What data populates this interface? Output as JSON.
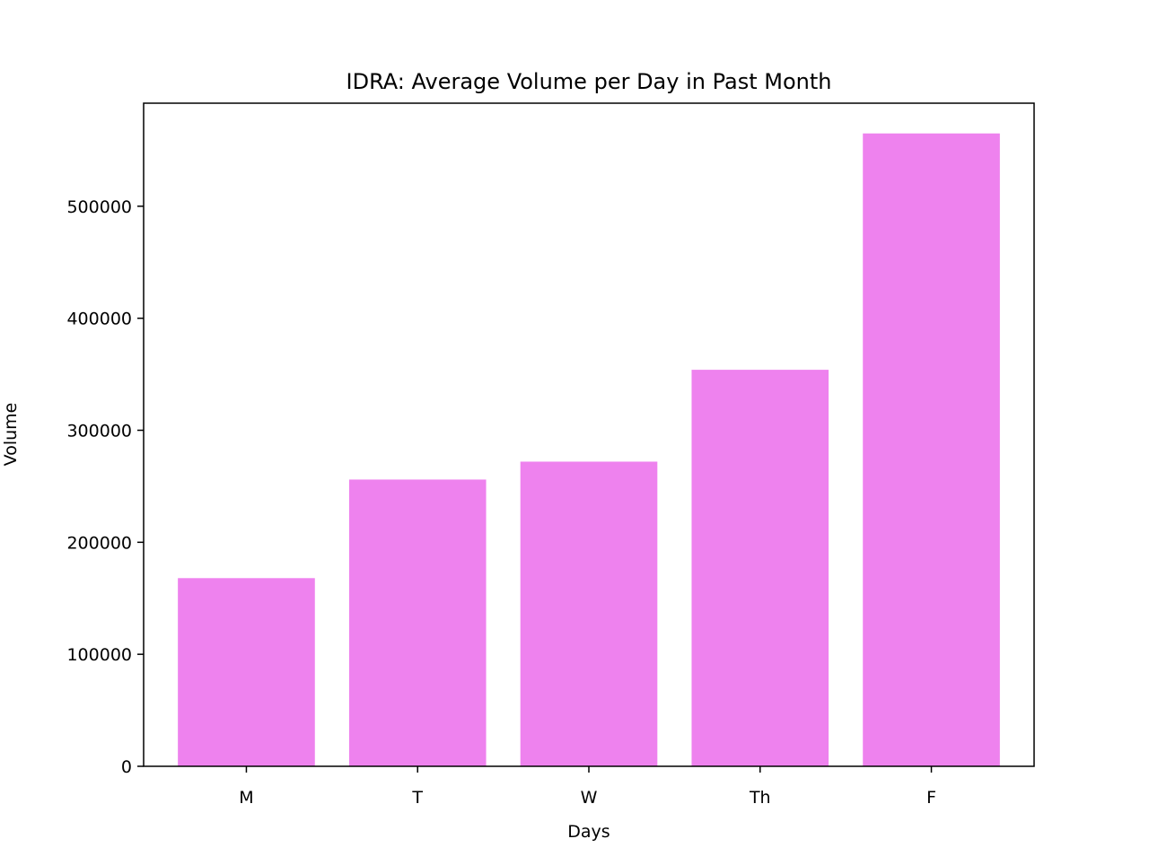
{
  "chart_data": {
    "type": "bar",
    "title": "IDRA: Average Volume per Day in Past Month",
    "xlabel": "Days",
    "ylabel": "Volume",
    "categories": [
      "M",
      "T",
      "W",
      "Th",
      "F"
    ],
    "values": [
      168000,
      256000,
      272000,
      354000,
      565000
    ],
    "ylim": [
      0,
      592000
    ],
    "yticks": [
      0,
      100000,
      200000,
      300000,
      400000,
      500000
    ],
    "ytick_labels": [
      "0",
      "100000",
      "200000",
      "300000",
      "400000",
      "500000"
    ],
    "grid": false,
    "legend": "none",
    "bar_color": "#ee82ee",
    "axis_color": "#000000"
  }
}
